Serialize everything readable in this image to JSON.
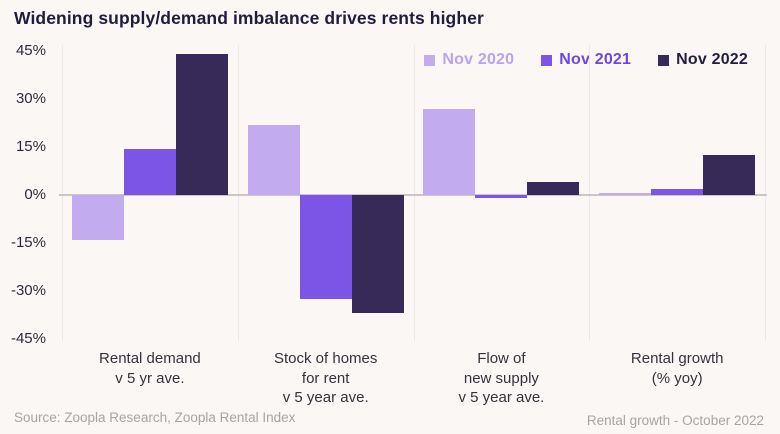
{
  "title": "Widening supply/demand imbalance drives rents higher",
  "footer": {
    "source": "Source: Zoopla Research, Zoopla Rental Index",
    "caption": "Rental growth - October 2022"
  },
  "colors": {
    "background": "#faf7f5",
    "title_text": "#201c3e",
    "axis_text": "#2c2a3e",
    "category_text": "#35323f",
    "zero_line": "#c9c6c3",
    "separator_line": "#ece9e5",
    "footer_text": "#a8a4a0"
  },
  "chart_data": {
    "type": "bar",
    "title": "Widening supply/demand imbalance drives rents higher",
    "categories": [
      [
        "Rental demand",
        "v 5 yr ave."
      ],
      [
        "Stock of homes",
        "for rent",
        "v 5 year ave."
      ],
      [
        "Flow of",
        "new supply",
        "v 5 year ave."
      ],
      [
        "Rental growth",
        "(% yoy)"
      ]
    ],
    "series": [
      {
        "name": "Nov 2020",
        "color": "#c3abef",
        "text_color": "#b9a3ee",
        "values": [
          -14,
          22,
          27,
          0.5
        ]
      },
      {
        "name": "Nov 2021",
        "color": "#7c55e6",
        "text_color": "#6f46e0",
        "values": [
          14.5,
          -32.5,
          -1,
          2
        ]
      },
      {
        "name": "Nov 2022",
        "color": "#372a59",
        "text_color": "#221d41",
        "values": [
          44,
          -37,
          4,
          12.5
        ]
      }
    ],
    "xlabel": "",
    "ylabel": "",
    "ylim": [
      -45,
      45
    ],
    "yticks": [
      {
        "value": 45,
        "label": "45%"
      },
      {
        "value": 30,
        "label": "30%"
      },
      {
        "value": 15,
        "label": "15%"
      },
      {
        "value": 0,
        "label": "0%"
      },
      {
        "value": -15,
        "label": "-15%"
      },
      {
        "value": -30,
        "label": "-30%"
      },
      {
        "value": -45,
        "label": "-45%"
      }
    ],
    "grid": "vertical-category-separators-only",
    "legend_position": "top-right"
  }
}
